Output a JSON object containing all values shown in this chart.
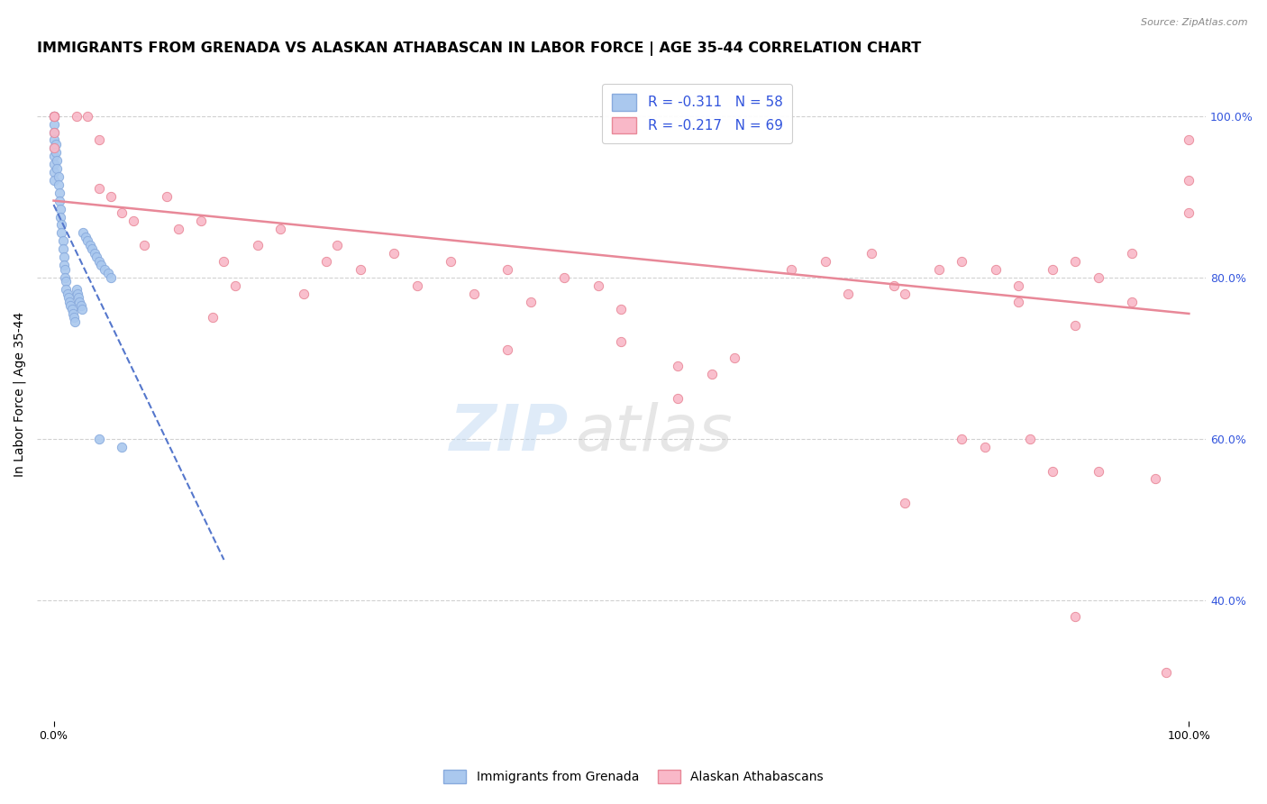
{
  "title": "IMMIGRANTS FROM GRENADA VS ALASKAN ATHABASCAN IN LABOR FORCE | AGE 35-44 CORRELATION CHART",
  "source": "Source: ZipAtlas.com",
  "ylabel": "In Labor Force | Age 35-44",
  "grenada_color": "#aac8ee",
  "athabascan_color": "#f9b8c8",
  "grenada_edge": "#88aadd",
  "athabascan_edge": "#e88898",
  "trend_grenada_color": "#5577cc",
  "trend_athabascan_color": "#e88898",
  "watermark_zip": "ZIP",
  "watermark_atlas": "atlas",
  "background_color": "#ffffff",
  "grid_color": "#cccccc",
  "title_fontsize": 11.5,
  "axis_label_fontsize": 10,
  "tick_fontsize": 9,
  "scatter_size": 55,
  "footer_labels": [
    "Immigrants from Grenada",
    "Alaskan Athabascans"
  ],
  "right_tick_color": "#3355dd",
  "grenada_scatter_x": [
    0.0,
    0.0,
    0.0,
    0.0,
    0.0,
    0.0,
    0.0,
    0.0,
    0.0,
    0.0,
    0.002,
    0.002,
    0.003,
    0.003,
    0.004,
    0.004,
    0.005,
    0.005,
    0.006,
    0.006,
    0.007,
    0.007,
    0.008,
    0.008,
    0.009,
    0.009,
    0.01,
    0.01,
    0.011,
    0.011,
    0.012,
    0.013,
    0.014,
    0.015,
    0.016,
    0.017,
    0.018,
    0.019,
    0.02,
    0.021,
    0.022,
    0.023,
    0.024,
    0.025,
    0.026,
    0.028,
    0.03,
    0.032,
    0.034,
    0.036,
    0.038,
    0.04,
    0.042,
    0.045,
    0.048,
    0.05,
    0.04,
    0.06
  ],
  "grenada_scatter_y": [
    1.0,
    1.0,
    0.99,
    0.98,
    0.97,
    0.96,
    0.95,
    0.94,
    0.93,
    0.92,
    0.965,
    0.955,
    0.945,
    0.935,
    0.925,
    0.915,
    0.905,
    0.895,
    0.885,
    0.875,
    0.865,
    0.855,
    0.845,
    0.835,
    0.825,
    0.815,
    0.81,
    0.8,
    0.795,
    0.785,
    0.78,
    0.775,
    0.77,
    0.765,
    0.76,
    0.755,
    0.75,
    0.745,
    0.785,
    0.78,
    0.775,
    0.77,
    0.765,
    0.76,
    0.855,
    0.85,
    0.845,
    0.84,
    0.835,
    0.83,
    0.825,
    0.82,
    0.815,
    0.81,
    0.805,
    0.8,
    0.6,
    0.59
  ],
  "athabascan_scatter_x": [
    0.0,
    0.0,
    0.0,
    0.0,
    0.0,
    0.02,
    0.03,
    0.04,
    0.04,
    0.05,
    0.06,
    0.07,
    0.08,
    0.1,
    0.11,
    0.13,
    0.14,
    0.15,
    0.16,
    0.18,
    0.2,
    0.22,
    0.24,
    0.25,
    0.27,
    0.3,
    0.32,
    0.35,
    0.37,
    0.4,
    0.42,
    0.45,
    0.48,
    0.5,
    0.4,
    0.5,
    0.55,
    0.55,
    0.58,
    0.6,
    0.65,
    0.68,
    0.7,
    0.72,
    0.74,
    0.75,
    0.78,
    0.8,
    0.82,
    0.83,
    0.85,
    0.86,
    0.88,
    0.9,
    0.9,
    0.92,
    0.95,
    0.95,
    0.97,
    0.98,
    1.0,
    1.0,
    1.0,
    0.85,
    0.9,
    0.88,
    0.92,
    0.75,
    0.8
  ],
  "athabascan_scatter_y": [
    1.0,
    1.0,
    1.0,
    0.98,
    0.96,
    1.0,
    1.0,
    0.97,
    0.91,
    0.9,
    0.88,
    0.87,
    0.84,
    0.9,
    0.86,
    0.87,
    0.75,
    0.82,
    0.79,
    0.84,
    0.86,
    0.78,
    0.82,
    0.84,
    0.81,
    0.83,
    0.79,
    0.82,
    0.78,
    0.81,
    0.77,
    0.8,
    0.79,
    0.76,
    0.71,
    0.72,
    0.69,
    0.65,
    0.68,
    0.7,
    0.81,
    0.82,
    0.78,
    0.83,
    0.79,
    0.78,
    0.81,
    0.82,
    0.59,
    0.81,
    0.79,
    0.6,
    0.56,
    0.82,
    0.38,
    0.8,
    0.83,
    0.77,
    0.55,
    0.31,
    0.97,
    0.92,
    0.88,
    0.77,
    0.74,
    0.81,
    0.56,
    0.52,
    0.6
  ],
  "grenada_trend_x": [
    0.0,
    0.15
  ],
  "grenada_trend_y": [
    0.89,
    0.45
  ],
  "athabascan_trend_x": [
    0.0,
    1.0
  ],
  "athabascan_trend_y": [
    0.895,
    0.755
  ],
  "xlim": [
    -0.015,
    1.015
  ],
  "ylim": [
    0.25,
    1.06
  ],
  "yticks": [
    0.4,
    0.6,
    0.8,
    1.0
  ]
}
